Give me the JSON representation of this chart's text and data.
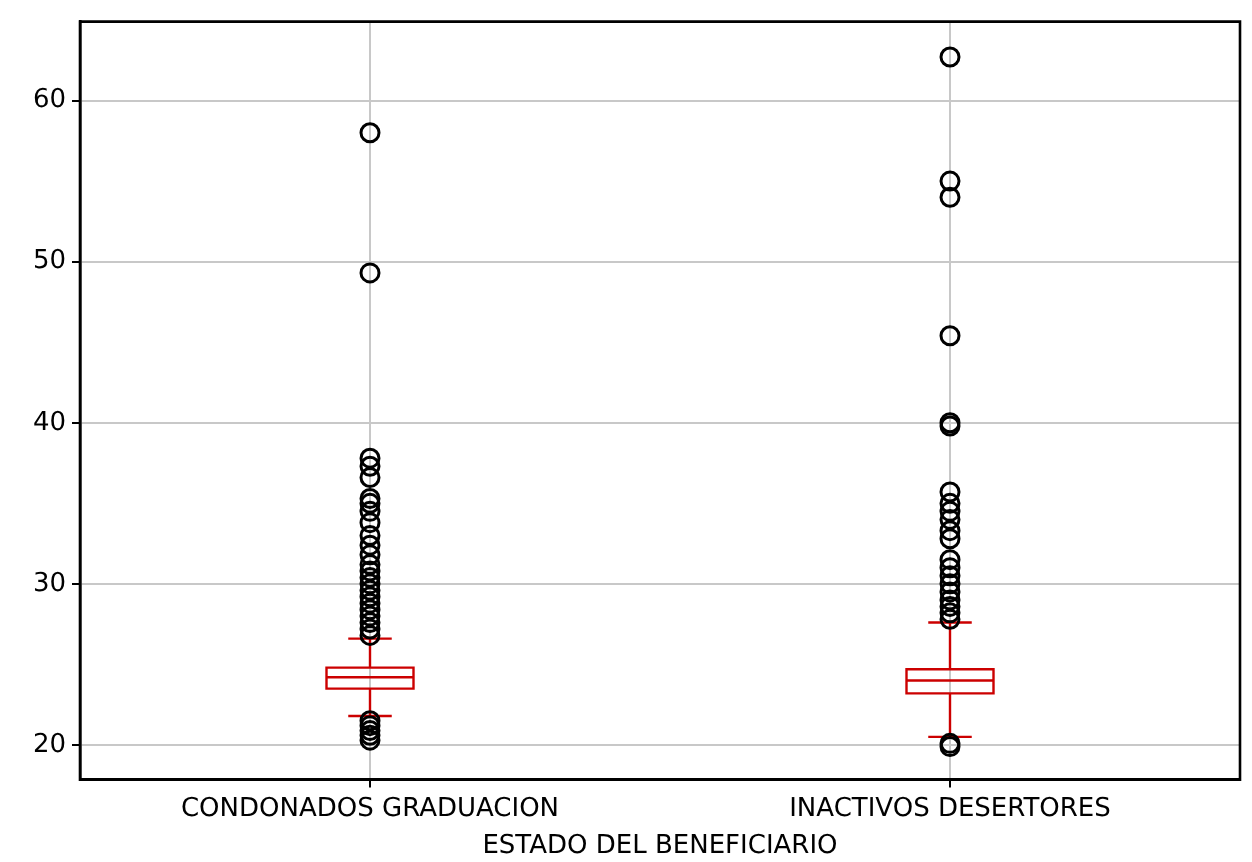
{
  "chart_data": {
    "type": "box",
    "xlabel": "ESTADO DEL BENEFICIARIO",
    "categories": [
      "CONDONADOS GRADUACION",
      "INACTIVOS DESERTORES"
    ],
    "color": "#cc0000",
    "boxes": [
      {
        "low": 21.8,
        "q1": 23.5,
        "median": 24.2,
        "q3": 24.8,
        "high": 26.6,
        "outliers": [
          20.3,
          20.6,
          20.9,
          21.2,
          21.5,
          26.8,
          27.2,
          27.6,
          28,
          28.4,
          28.8,
          29.2,
          29.6,
          30,
          30.4,
          30.8,
          31.2,
          31.8,
          32.4,
          33,
          33.8,
          34.5,
          35,
          35.3,
          36.6,
          37.3,
          37.8,
          49.3,
          58
        ]
      },
      {
        "low": 20.5,
        "q1": 23.2,
        "median": 24,
        "q3": 24.7,
        "high": 27.6,
        "outliers": [
          19.9,
          20.1,
          27.8,
          28.2,
          28.6,
          29,
          29.5,
          30,
          30.5,
          31,
          31.5,
          32.8,
          33.3,
          34,
          34.5,
          35,
          35.7,
          39.8,
          40,
          45.4,
          54,
          55,
          62.7
        ]
      }
    ],
    "ylim": [
      17.85,
      64.9
    ],
    "yticks": [
      20,
      30,
      40,
      50,
      60
    ],
    "grid": true,
    "legend": false,
    "marker": "circle"
  }
}
